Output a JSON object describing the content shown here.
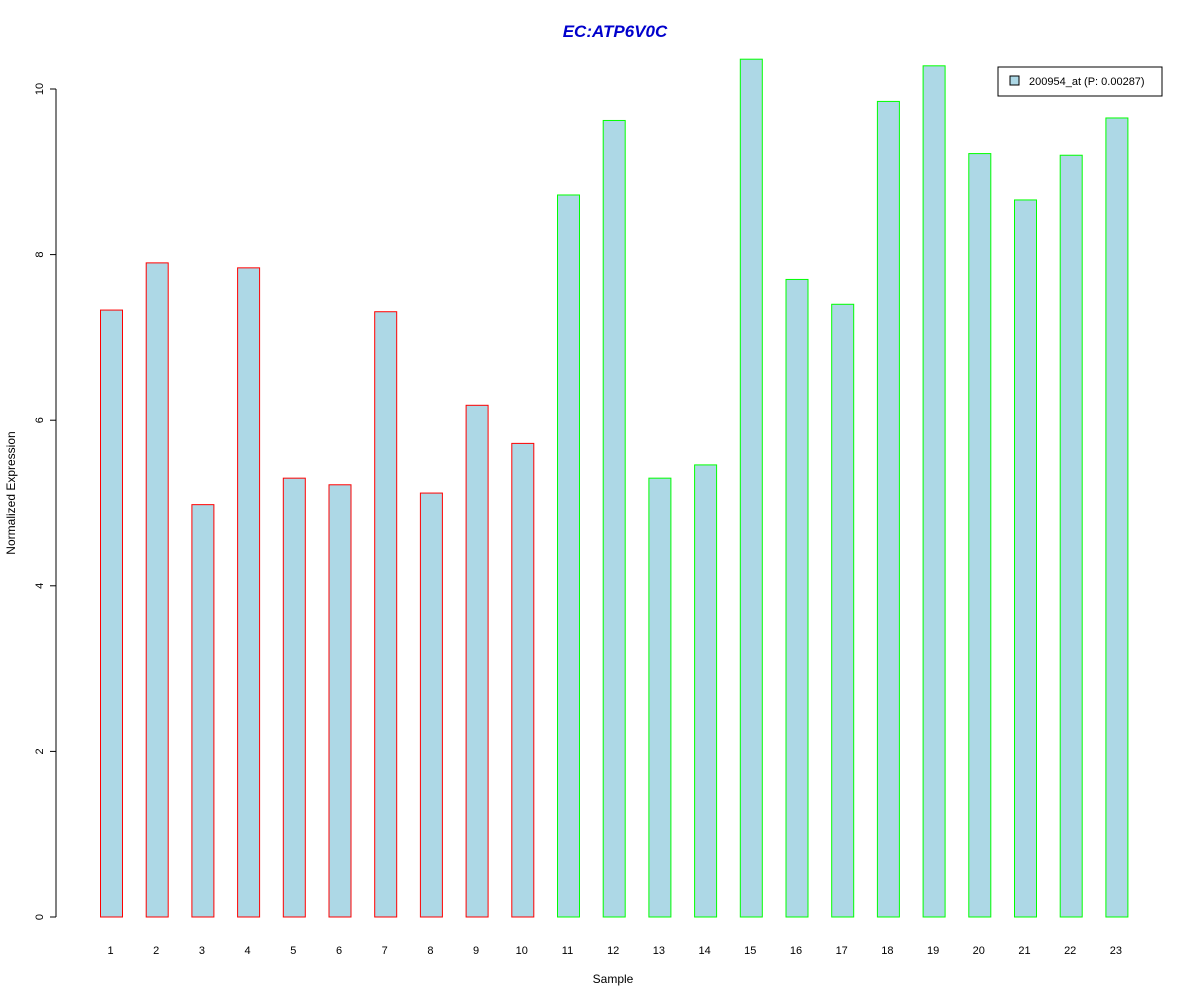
{
  "chart_data": {
    "type": "bar",
    "title": "EC:ATP6V0C",
    "xlabel": "Sample",
    "ylabel": "Normalized Expression",
    "categories": [
      "1",
      "2",
      "3",
      "4",
      "5",
      "6",
      "7",
      "8",
      "9",
      "10",
      "11",
      "12",
      "13",
      "14",
      "15",
      "16",
      "17",
      "18",
      "19",
      "20",
      "21",
      "22",
      "23"
    ],
    "values": [
      7.33,
      7.9,
      4.98,
      7.84,
      5.3,
      5.22,
      7.31,
      5.12,
      6.18,
      5.72,
      8.72,
      9.62,
      5.3,
      5.46,
      10.36,
      7.7,
      7.4,
      9.85,
      10.28,
      9.22,
      8.66,
      9.2,
      9.65
    ],
    "groups": [
      "red",
      "red",
      "red",
      "red",
      "red",
      "red",
      "red",
      "red",
      "red",
      "red",
      "green",
      "green",
      "green",
      "green",
      "green",
      "green",
      "green",
      "green",
      "green",
      "green",
      "green",
      "green",
      "green"
    ],
    "ylim": [
      0,
      10.36
    ],
    "yticks": [
      0,
      2,
      4,
      6,
      8,
      10
    ],
    "grid": false,
    "legend": {
      "position": "top-right",
      "entries": [
        "200954_at (P: 0.00287)"
      ]
    },
    "colors": {
      "title": "#0000cc",
      "bar_fill": "#add8e6",
      "border_red": "#ff0000",
      "border_green": "#00ff00",
      "axis": "#000000"
    }
  }
}
